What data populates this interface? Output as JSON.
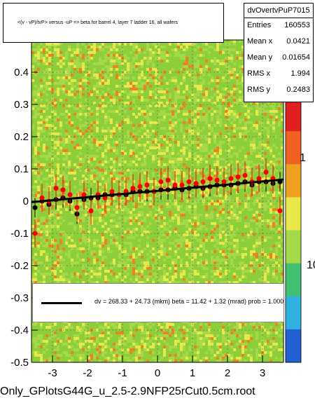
{
  "chart_data": {
    "type": "scatter",
    "title": "<(v - vP)/tvP> versus -uP => beta for barrel 4, layer 7 ladder 16, all wafers",
    "xlabel": "",
    "ylabel": "",
    "xlim": [
      -3.6,
      3.6
    ],
    "ylim": [
      -0.5,
      0.5
    ],
    "x_ticks": [
      -3,
      -2,
      -1,
      0,
      1,
      2,
      3
    ],
    "x_tick_labels": [
      "-3",
      "-2",
      "-1",
      "0",
      "1",
      "2",
      "3"
    ],
    "y_ticks": [
      -0.5,
      -0.4,
      -0.3,
      -0.2,
      -0.1,
      0,
      0.1,
      0.2,
      0.3,
      0.4
    ],
    "y_tick_labels": [
      "-0.5",
      "-0.4",
      "-0.3",
      "-0.2",
      "-0.1",
      "0",
      "0.1",
      "0.2",
      "0.3",
      "0.4"
    ],
    "z_tick_labels": [
      "1",
      "10"
    ],
    "grid": true,
    "fit_line": {
      "x0": -3.6,
      "y0": -0.003,
      "x1": 3.6,
      "y1": 0.067
    },
    "series": [
      {
        "color": "#000000",
        "points": [
          [
            -3.5,
            -0.02
          ],
          [
            -3.3,
            0.0
          ],
          [
            -3.1,
            -0.01
          ],
          [
            -2.9,
            0.005
          ],
          [
            -2.7,
            0.01
          ],
          [
            -2.5,
            0.0
          ],
          [
            -2.3,
            -0.04
          ],
          [
            -2.1,
            0.005
          ],
          [
            -1.9,
            0.01
          ],
          [
            -1.7,
            0.01
          ],
          [
            -1.5,
            0.02
          ],
          [
            -1.3,
            0.02
          ],
          [
            -1.1,
            0.02
          ],
          [
            -0.9,
            0.02
          ],
          [
            -0.7,
            0.03
          ],
          [
            -0.5,
            0.03
          ],
          [
            -0.3,
            0.03
          ],
          [
            -0.1,
            0.03
          ],
          [
            0.1,
            0.035
          ],
          [
            0.3,
            0.035
          ],
          [
            0.5,
            0.04
          ],
          [
            0.7,
            0.035
          ],
          [
            0.9,
            0.04
          ],
          [
            1.1,
            0.045
          ],
          [
            1.3,
            0.04
          ],
          [
            1.5,
            0.045
          ],
          [
            1.7,
            0.05
          ],
          [
            1.9,
            0.05
          ],
          [
            2.1,
            0.05
          ],
          [
            2.3,
            0.055
          ],
          [
            2.5,
            0.06
          ],
          [
            2.7,
            0.05
          ],
          [
            2.9,
            0.06
          ],
          [
            3.1,
            0.06
          ],
          [
            3.3,
            0.055
          ],
          [
            3.5,
            0.06
          ]
        ]
      },
      {
        "color": "#ff0000",
        "points": [
          [
            -3.5,
            -0.1
          ],
          [
            -3.3,
            0.01
          ],
          [
            -3.1,
            0.0
          ],
          [
            -2.9,
            0.04
          ],
          [
            -2.7,
            0.035
          ],
          [
            -2.5,
            0.02
          ],
          [
            -2.3,
            -0.02
          ],
          [
            -2.1,
            0.02
          ],
          [
            -1.9,
            -0.03
          ],
          [
            -1.7,
            0.02
          ],
          [
            -1.5,
            0.01
          ],
          [
            -1.3,
            0.03
          ],
          [
            -1.1,
            0.02
          ],
          [
            -0.9,
            0.03
          ],
          [
            -0.7,
            0.04
          ],
          [
            -0.5,
            0.045
          ],
          [
            -0.3,
            0.05
          ],
          [
            -0.1,
            0.03
          ],
          [
            0.1,
            0.06
          ],
          [
            0.3,
            0.065
          ],
          [
            0.5,
            0.05
          ],
          [
            0.7,
            0.05
          ],
          [
            0.9,
            0.06
          ],
          [
            1.1,
            0.055
          ],
          [
            1.3,
            0.06
          ],
          [
            1.5,
            0.07
          ],
          [
            1.7,
            0.065
          ],
          [
            1.9,
            0.06
          ],
          [
            2.1,
            0.07
          ],
          [
            2.3,
            0.075
          ],
          [
            2.5,
            0.08
          ],
          [
            2.7,
            0.06
          ],
          [
            2.9,
            0.07
          ],
          [
            3.1,
            0.09
          ],
          [
            3.3,
            0.07
          ],
          [
            3.5,
            -0.03
          ]
        ]
      }
    ]
  },
  "title_box": {
    "text": "<(v - vP)/tvP> versus -uP => beta for barrel 4, layer 7 ladder 16, all wafers"
  },
  "stats": {
    "name": "dvOvertvPuP7015",
    "rows": [
      {
        "key": "Entries",
        "value": "160553"
      },
      {
        "key": "Mean x",
        "value": "0.0421"
      },
      {
        "key": "Mean y",
        "value": "0.01654"
      },
      {
        "key": "RMS x",
        "value": "1.994"
      },
      {
        "key": "RMS y",
        "value": "0.2483"
      }
    ]
  },
  "legend": {
    "text": "dv =  268.33 + 24.73 (mkm) beta =   11.42 +   1.32 (mrad) prob = 1.000"
  },
  "footer": {
    "text": "Only_GPlotsG44G_u_2.5-2.9NFP25rCut0.5cm.root"
  },
  "colors": {
    "heat_low": "#8ccf3a",
    "heat_mid": "#e8e84a",
    "heat_high": "#f08020",
    "heat_top": "#e02020"
  }
}
